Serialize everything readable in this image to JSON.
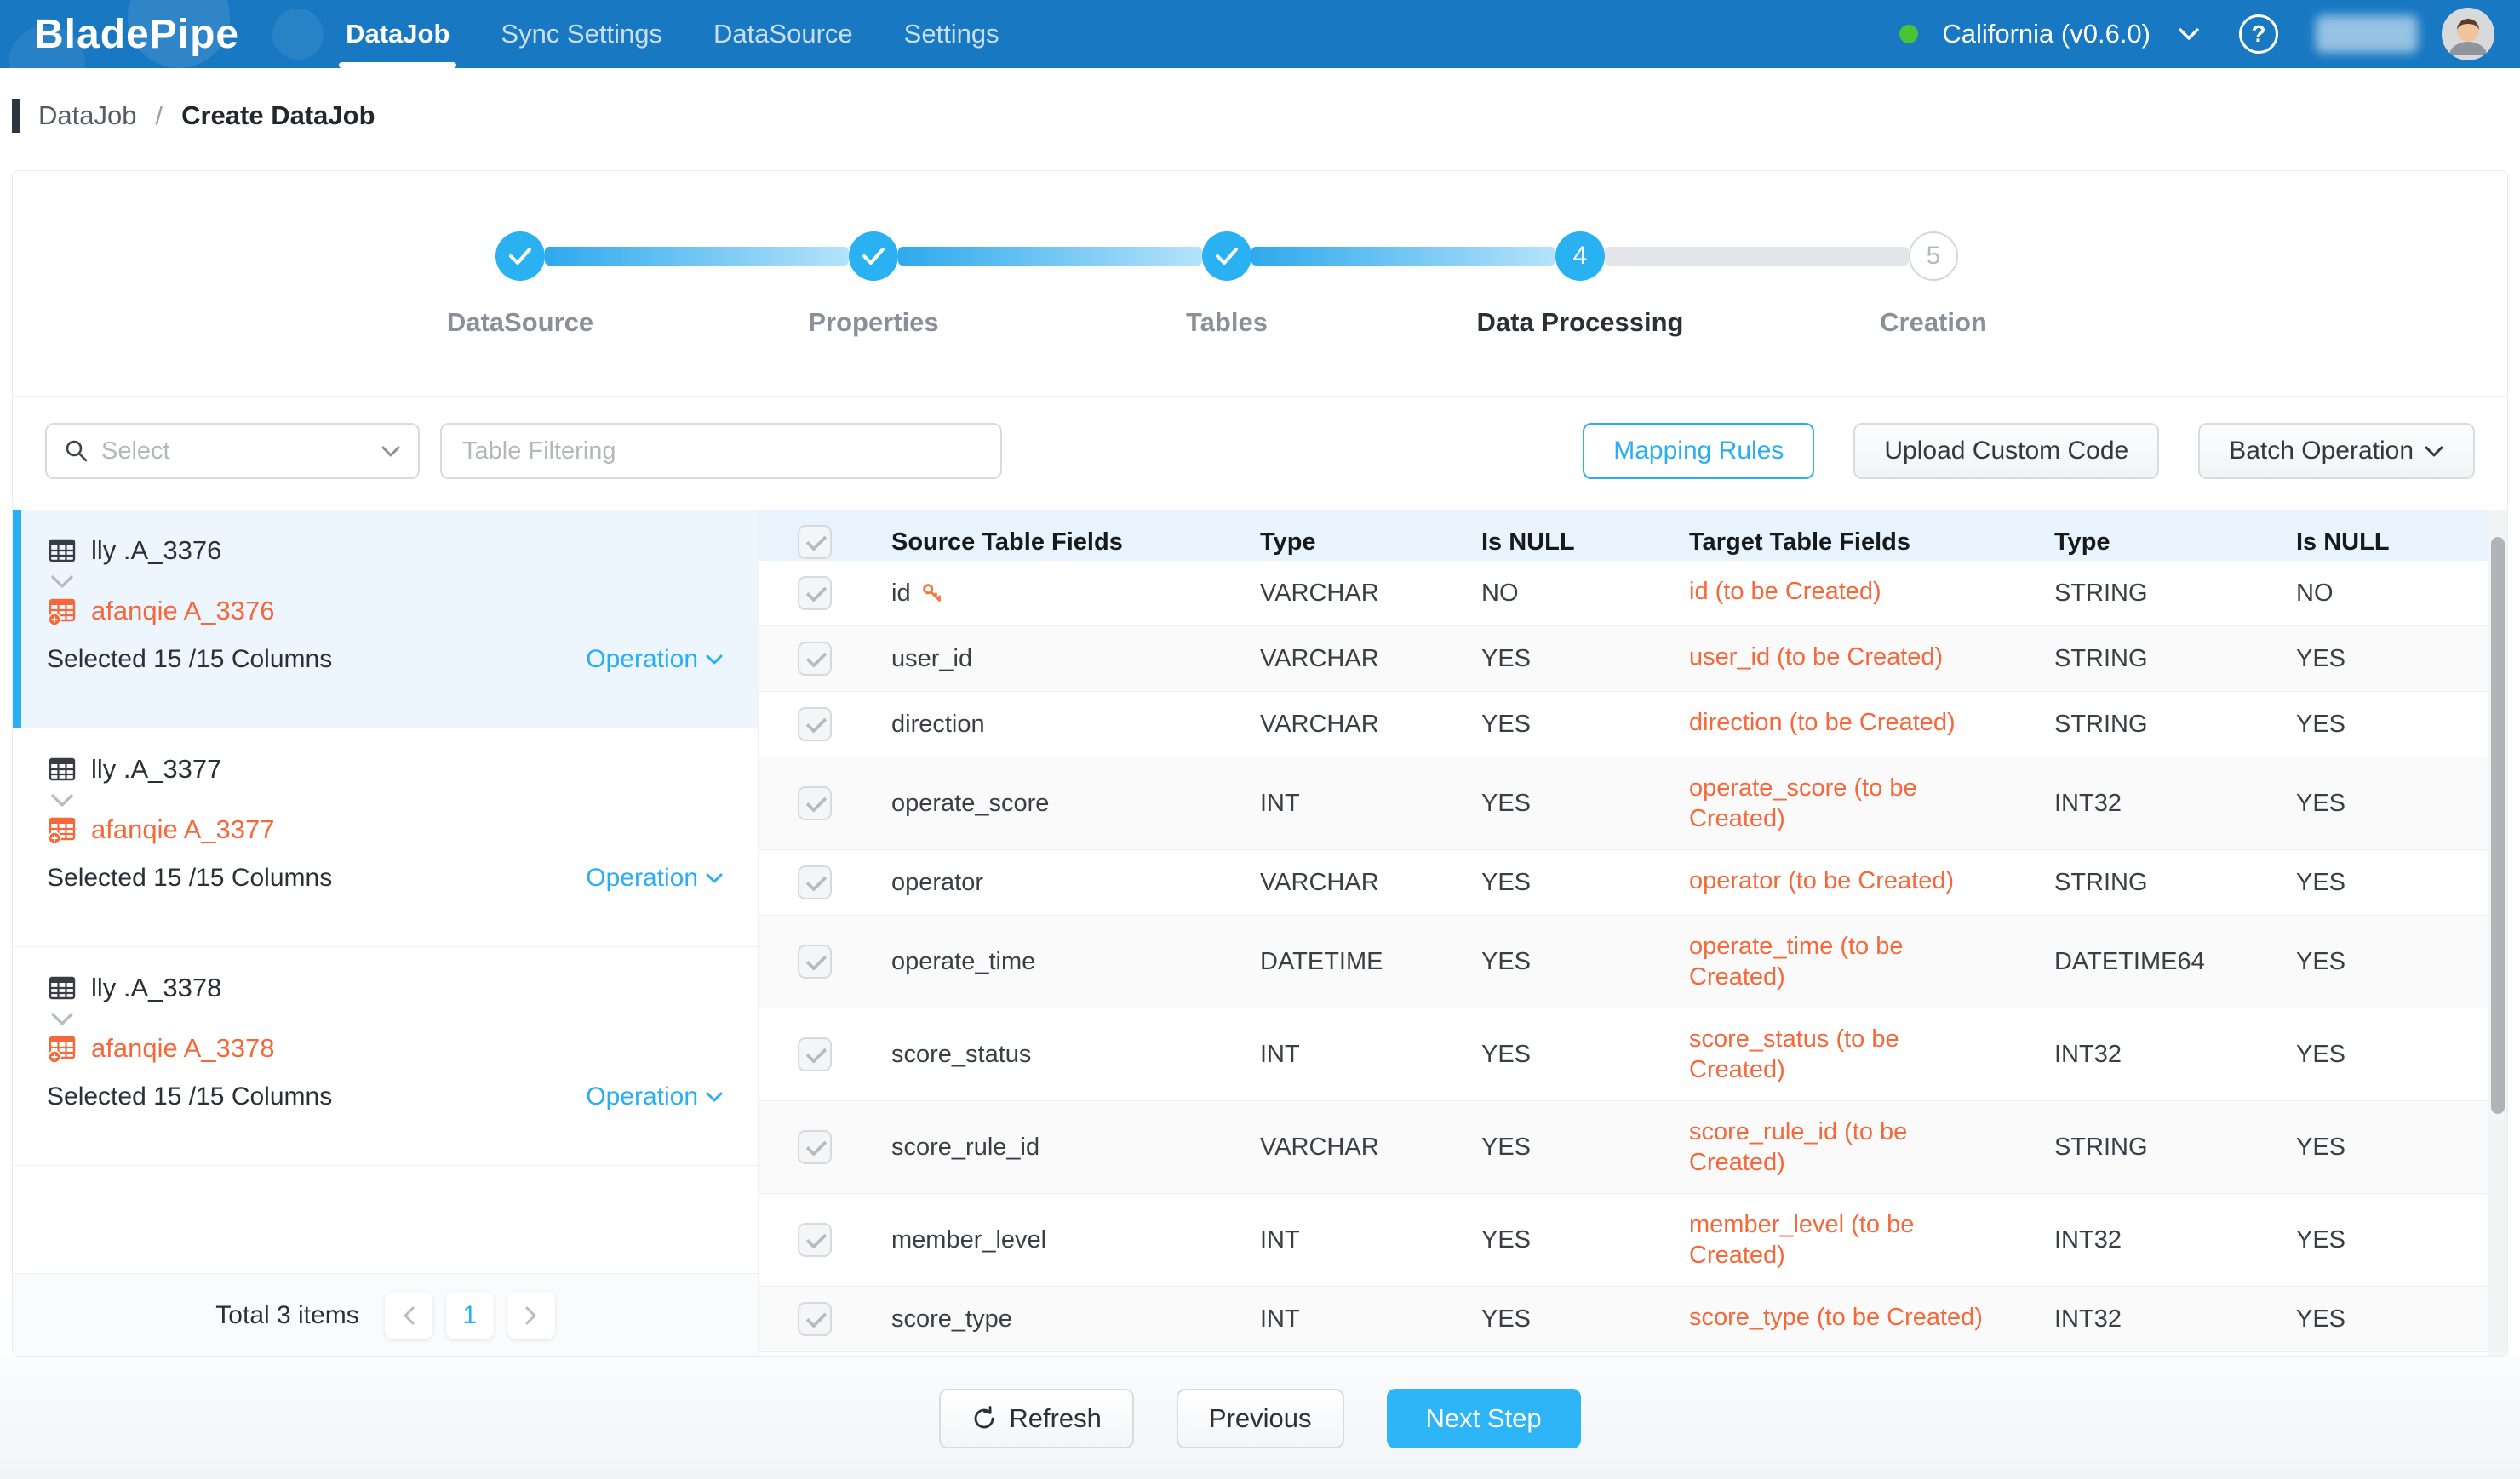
{
  "colors": {
    "nav_blue": "#1878c2",
    "accent_blue": "#2aaef3",
    "accent_orange": "#f5683a",
    "status_green": "#4cc236",
    "table_header_bg": "#e9f3fd"
  },
  "nav": {
    "brand": "BladePipe",
    "items": [
      {
        "label": "DataJob",
        "active": true
      },
      {
        "label": "Sync Settings",
        "active": false
      },
      {
        "label": "DataSource",
        "active": false
      },
      {
        "label": "Settings",
        "active": false
      }
    ],
    "region": "California (v0.6.0)",
    "help_glyph": "?"
  },
  "breadcrumb": {
    "parent": "DataJob",
    "separator": "/",
    "current": "Create DataJob"
  },
  "stepper": {
    "steps": [
      {
        "label": "DataSource",
        "state": "done",
        "number": "1"
      },
      {
        "label": "Properties",
        "state": "done",
        "number": "2"
      },
      {
        "label": "Tables",
        "state": "done",
        "number": "3"
      },
      {
        "label": "Data Processing",
        "state": "active",
        "number": "4"
      },
      {
        "label": "Creation",
        "state": "pending",
        "number": "5"
      }
    ]
  },
  "toolbar": {
    "select_placeholder": "Select",
    "filter_placeholder": "Table Filtering",
    "buttons": {
      "mapping_rules": "Mapping Rules",
      "upload_custom_code": "Upload Custom Code",
      "batch_operation": "Batch Operation"
    }
  },
  "table_list": {
    "cards": [
      {
        "source": "lly .A_3376",
        "target": "afanqie A_3376",
        "selected_info": "Selected 15 /15 Columns",
        "operation_label": "Operation",
        "selected": true
      },
      {
        "source": "lly .A_3377",
        "target": "afanqie A_3377",
        "selected_info": "Selected 15 /15 Columns",
        "operation_label": "Operation",
        "selected": false
      },
      {
        "source": "lly .A_3378",
        "target": "afanqie A_3378",
        "selected_info": "Selected 15 /15 Columns",
        "operation_label": "Operation",
        "selected": false
      }
    ],
    "footer": {
      "total_label": "Total 3 items",
      "page": "1"
    }
  },
  "field_table": {
    "headers": [
      "Source Table Fields",
      "Type",
      "Is NULL",
      "Target Table Fields",
      "Type",
      "Is NULL"
    ],
    "rows": [
      {
        "source": "id",
        "primary_key": true,
        "type": "VARCHAR",
        "is_null": "NO",
        "target": "id (to be Created)",
        "target_type": "STRING",
        "target_is_null": "NO"
      },
      {
        "source": "user_id",
        "primary_key": false,
        "type": "VARCHAR",
        "is_null": "YES",
        "target": "user_id (to be Created)",
        "target_type": "STRING",
        "target_is_null": "YES"
      },
      {
        "source": "direction",
        "primary_key": false,
        "type": "VARCHAR",
        "is_null": "YES",
        "target": "direction (to be Created)",
        "target_type": "STRING",
        "target_is_null": "YES"
      },
      {
        "source": "operate_score",
        "primary_key": false,
        "type": "INT",
        "is_null": "YES",
        "target": "operate_score (to be Created)",
        "target_type": "INT32",
        "target_is_null": "YES"
      },
      {
        "source": "operator",
        "primary_key": false,
        "type": "VARCHAR",
        "is_null": "YES",
        "target": "operator (to be Created)",
        "target_type": "STRING",
        "target_is_null": "YES"
      },
      {
        "source": "operate_time",
        "primary_key": false,
        "type": "DATETIME",
        "is_null": "YES",
        "target": "operate_time (to be Created)",
        "target_type": "DATETIME64",
        "target_is_null": "YES"
      },
      {
        "source": "score_status",
        "primary_key": false,
        "type": "INT",
        "is_null": "YES",
        "target": "score_status (to be Created)",
        "target_type": "INT32",
        "target_is_null": "YES"
      },
      {
        "source": "score_rule_id",
        "primary_key": false,
        "type": "VARCHAR",
        "is_null": "YES",
        "target": "score_rule_id (to be Created)",
        "target_type": "STRING",
        "target_is_null": "YES"
      },
      {
        "source": "member_level",
        "primary_key": false,
        "type": "INT",
        "is_null": "YES",
        "target": "member_level (to be Created)",
        "target_type": "INT32",
        "target_is_null": "YES"
      },
      {
        "source": "score_type",
        "primary_key": false,
        "type": "INT",
        "is_null": "YES",
        "target": "score_type (to be Created)",
        "target_type": "INT32",
        "target_is_null": "YES"
      }
    ]
  },
  "actions": {
    "refresh": "Refresh",
    "previous": "Previous",
    "next": "Next Step"
  }
}
